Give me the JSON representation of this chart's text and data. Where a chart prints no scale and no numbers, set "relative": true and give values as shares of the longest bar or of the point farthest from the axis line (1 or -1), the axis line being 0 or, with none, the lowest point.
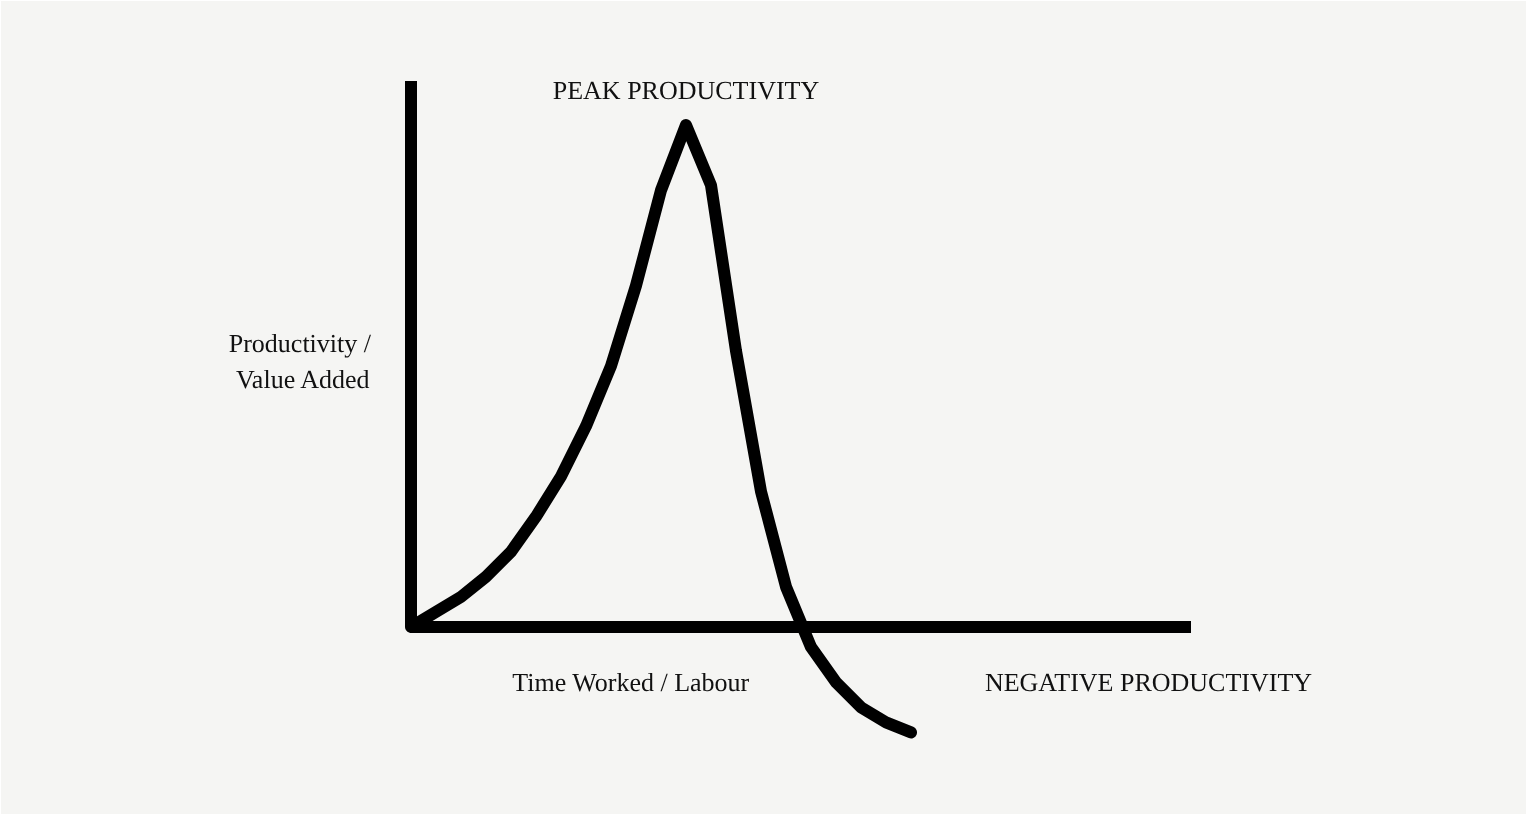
{
  "chart_data": {
    "type": "line",
    "relative": true,
    "xlabel": "Time Worked / Labour",
    "ylabel": "Productivity / Value Added",
    "categories": [
      null,
      null,
      null,
      null,
      null,
      null,
      null,
      null,
      null,
      null,
      null,
      null,
      null,
      null,
      null,
      null,
      null,
      null,
      null,
      null,
      null
    ],
    "series": [
      {
        "color": "#000000",
        "values": [
          0,
          0.03,
          0.06,
          0.1,
          0.15,
          0.22,
          0.3,
          0.4,
          0.52,
          0.68,
          0.87,
          1.0,
          0.88,
          0.55,
          0.27,
          0.08,
          -0.04,
          -0.11,
          -0.16,
          -0.19,
          -0.21
        ]
      }
    ],
    "annotations": [
      "PEAK PRODUCTIVITY",
      "NEGATIVE PRODUCTIVITY"
    ],
    "grid": false,
    "marker": "none",
    "line_style": "solid"
  }
}
